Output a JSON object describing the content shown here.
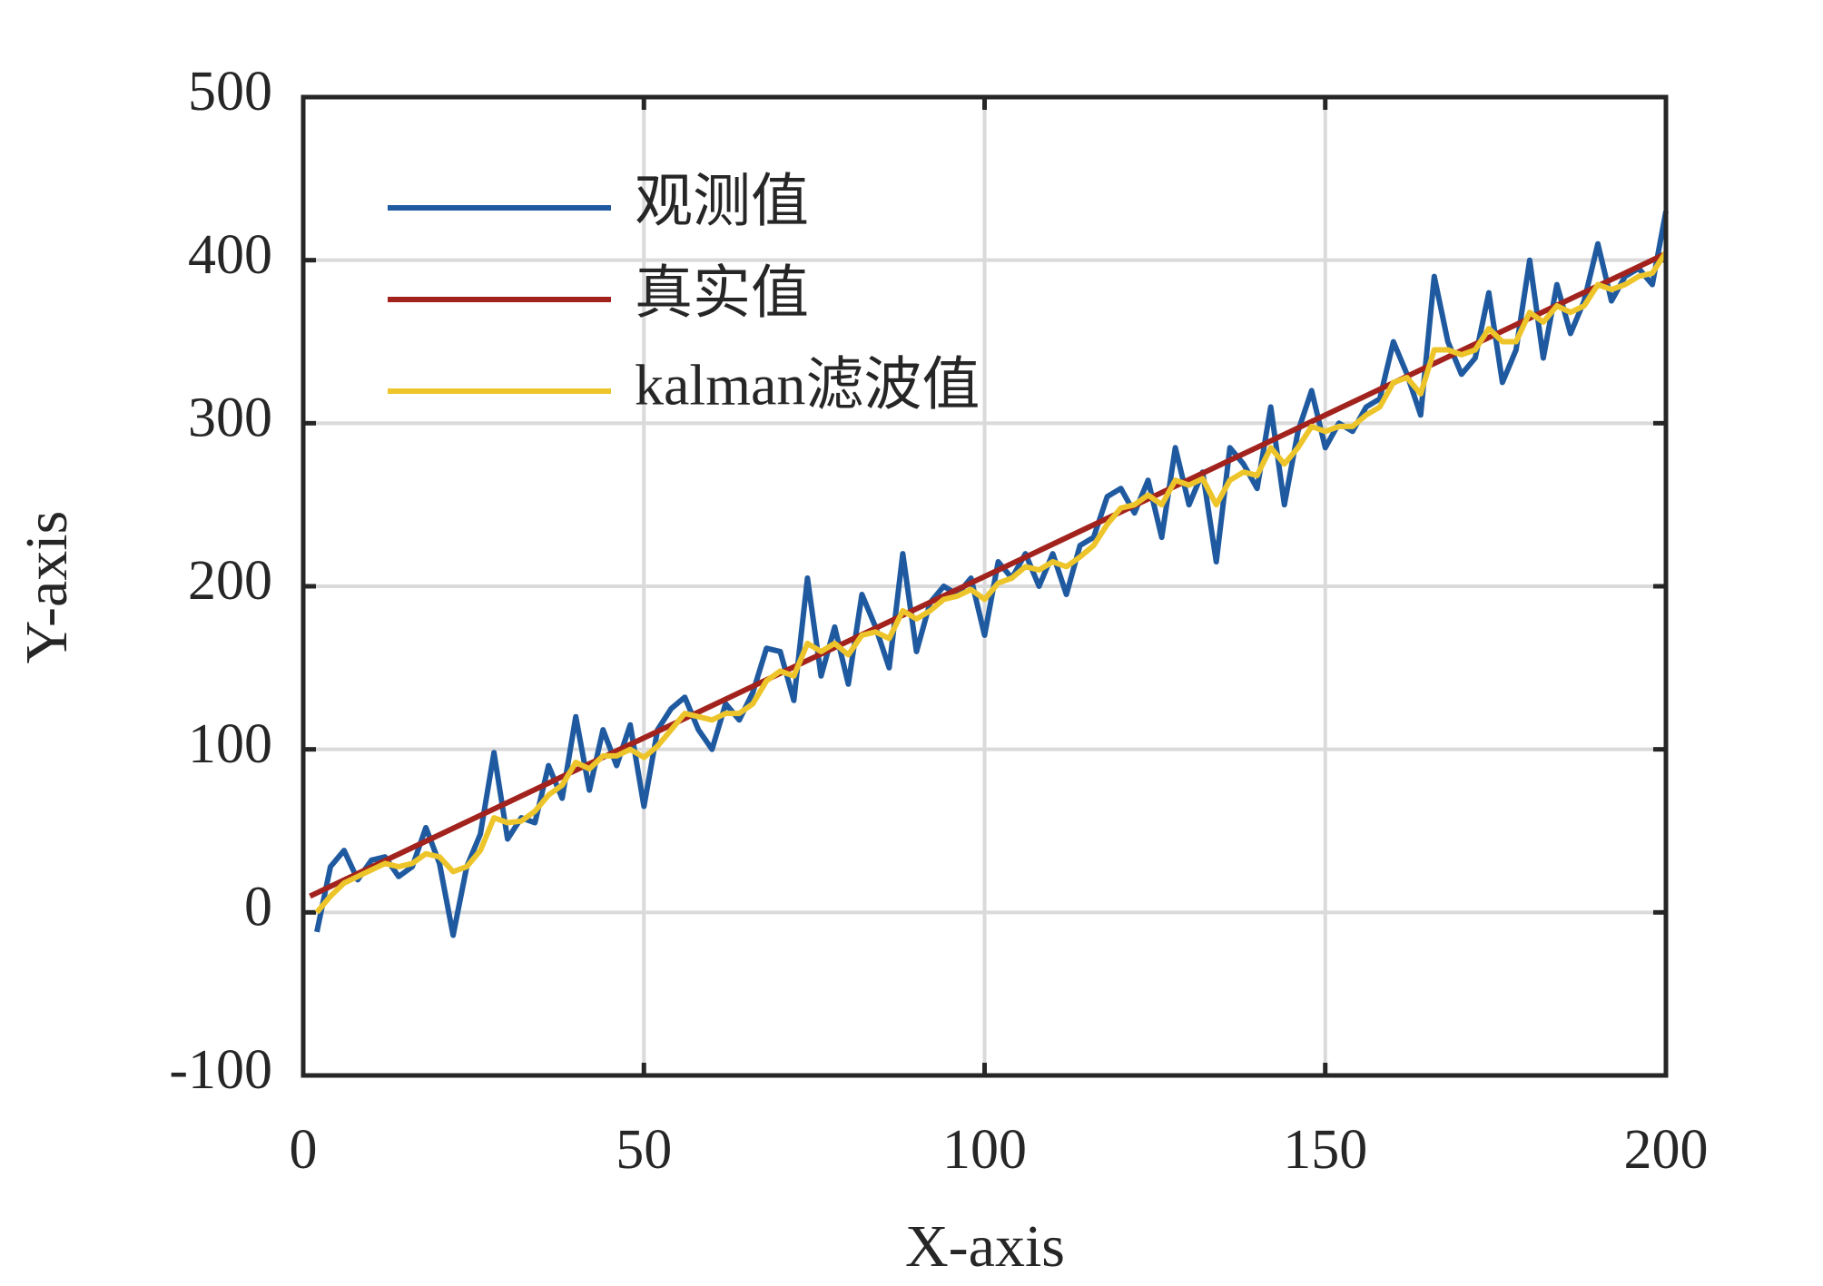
{
  "chart_data": {
    "type": "line",
    "xlabel": "X-axis",
    "ylabel": "Y-axis",
    "xlim": [
      0,
      200
    ],
    "xticks": [
      0,
      50,
      100,
      150,
      200
    ],
    "ylim": [
      -100,
      500
    ],
    "yticks": [
      -100,
      0,
      100,
      200,
      300,
      400,
      500
    ],
    "grid": true,
    "legend": "upper left",
    "x": [
      2,
      4,
      6,
      8,
      10,
      12,
      14,
      16,
      18,
      20,
      22,
      24,
      26,
      28,
      30,
      32,
      34,
      36,
      38,
      40,
      42,
      44,
      46,
      48,
      50,
      52,
      54,
      56,
      58,
      60,
      62,
      64,
      66,
      68,
      70,
      72,
      74,
      76,
      78,
      80,
      82,
      84,
      86,
      88,
      90,
      92,
      94,
      96,
      98,
      100,
      102,
      104,
      106,
      108,
      110,
      112,
      114,
      116,
      118,
      120,
      122,
      124,
      126,
      128,
      130,
      132,
      134,
      136,
      138,
      140,
      142,
      144,
      146,
      148,
      150,
      152,
      154,
      156,
      158,
      160,
      162,
      164,
      166,
      168,
      170,
      172,
      174,
      176,
      178,
      180,
      182,
      184,
      186,
      188,
      190,
      192,
      194,
      196,
      198,
      200
    ],
    "series": [
      {
        "name": "观测值",
        "color": "#1f5aa0",
        "values": [
          -12,
          28,
          38,
          20,
          32,
          34,
          22,
          28,
          52,
          30,
          -14,
          28,
          48,
          98,
          45,
          58,
          55,
          90,
          70,
          120,
          75,
          112,
          90,
          115,
          65,
          112,
          125,
          132,
          112,
          100,
          128,
          118,
          135,
          162,
          160,
          130,
          205,
          145,
          175,
          140,
          195,
          175,
          150,
          220,
          160,
          190,
          200,
          195,
          205,
          170,
          215,
          205,
          220,
          200,
          220,
          195,
          225,
          230,
          255,
          260,
          245,
          265,
          230,
          285,
          250,
          270,
          215,
          285,
          275,
          260,
          310,
          250,
          295,
          320,
          285,
          300,
          295,
          310,
          315,
          350,
          330,
          305,
          390,
          350,
          330,
          340,
          380,
          325,
          345,
          400,
          340,
          385,
          355,
          375,
          410,
          375,
          390,
          395,
          385,
          430
        ]
      },
      {
        "name": "真实值",
        "color": "#a2231d",
        "x": [
          1,
          200
        ],
        "values": [
          10,
          404
        ]
      },
      {
        "name": "kalman滤波值",
        "color": "#edc52a",
        "values": [
          0,
          10,
          18,
          22,
          26,
          30,
          28,
          30,
          36,
          34,
          25,
          28,
          38,
          58,
          55,
          56,
          62,
          72,
          78,
          92,
          88,
          96,
          96,
          100,
          95,
          102,
          112,
          122,
          120,
          118,
          122,
          122,
          128,
          142,
          148,
          145,
          165,
          160,
          165,
          158,
          170,
          172,
          168,
          185,
          180,
          185,
          192,
          194,
          198,
          192,
          202,
          205,
          212,
          210,
          215,
          212,
          218,
          225,
          238,
          248,
          250,
          256,
          250,
          265,
          262,
          266,
          250,
          265,
          270,
          268,
          285,
          275,
          285,
          298,
          295,
          298,
          298,
          305,
          310,
          325,
          328,
          318,
          345,
          345,
          342,
          345,
          358,
          350,
          350,
          368,
          362,
          372,
          368,
          372,
          385,
          382,
          385,
          390,
          392,
          405
        ]
      }
    ]
  }
}
